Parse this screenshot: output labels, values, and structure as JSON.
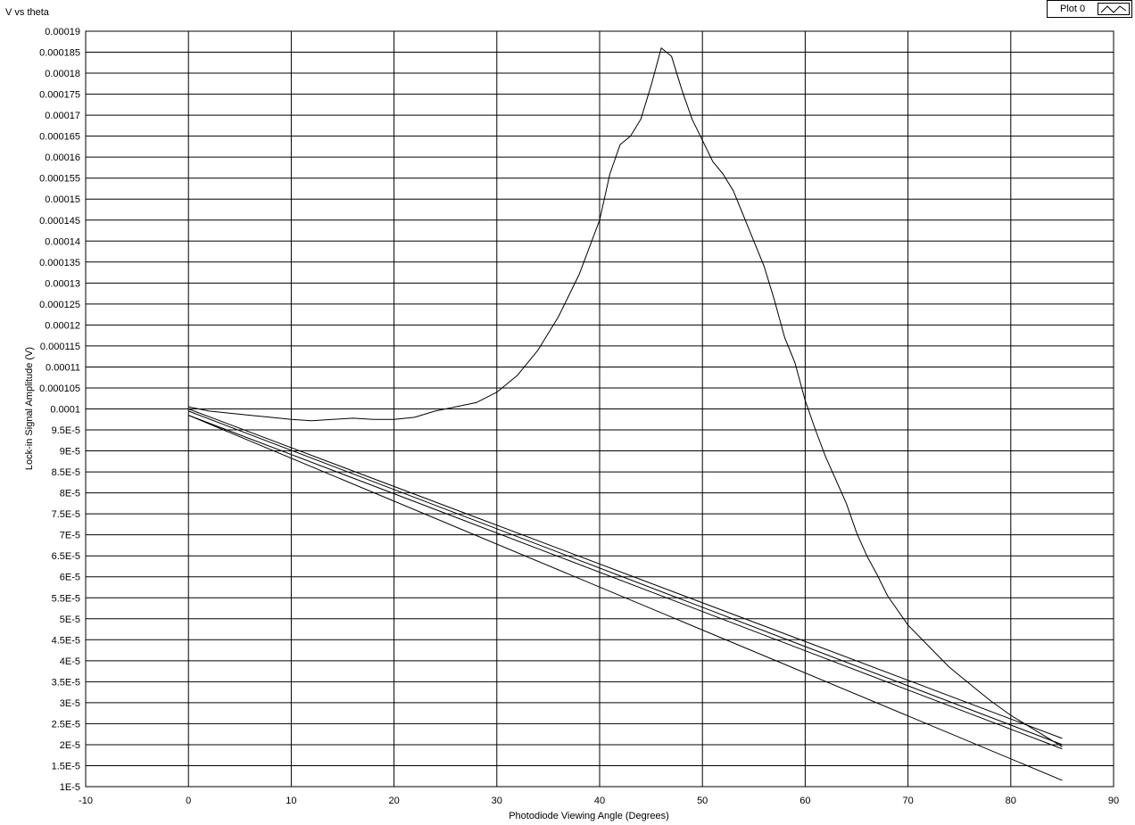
{
  "chart_data": {
    "type": "line",
    "title": "V vs theta",
    "xlabel": "Photodiode Viewing Angle (Degrees)",
    "ylabel": "Lock-in Signal Amplitude (V)",
    "xlim": [
      -10,
      90
    ],
    "ylim": [
      1e-05,
      0.00019
    ],
    "x_ticks": [
      "-10",
      "0",
      "10",
      "20",
      "30",
      "40",
      "50",
      "60",
      "70",
      "80",
      "90"
    ],
    "y_ticks": [
      "1E-5",
      "1.5E-5",
      "2E-5",
      "2.5E-5",
      "3E-5",
      "3.5E-5",
      "4E-5",
      "4.5E-5",
      "5E-5",
      "5.5E-5",
      "6E-5",
      "6.5E-5",
      "7E-5",
      "7.5E-5",
      "8E-5",
      "8.5E-5",
      "9E-5",
      "9.5E-5",
      "0.0001",
      "0.000105",
      "0.00011",
      "0.000115",
      "0.00012",
      "0.000125",
      "0.00013",
      "0.000135",
      "0.00014",
      "0.000145",
      "0.00015",
      "0.000155",
      "0.00016",
      "0.000165",
      "0.00017",
      "0.000175",
      "0.00018",
      "0.000185",
      "0.00019"
    ],
    "grid": true,
    "legend_position": "top-right",
    "series": [
      {
        "name": "Plot 0",
        "color": "#000000",
        "x": [
          0,
          2,
          4,
          6,
          8,
          10,
          12,
          14,
          16,
          18,
          20,
          22,
          24,
          26,
          28,
          30,
          32,
          34,
          36,
          38,
          40,
          41,
          42,
          43,
          44,
          45,
          46,
          47,
          48,
          49,
          50,
          51,
          52,
          53,
          54,
          55,
          56,
          57,
          58,
          59,
          60,
          61,
          62,
          63,
          64,
          65,
          66,
          67,
          68,
          70,
          72,
          74,
          76,
          78,
          80,
          82,
          84,
          85
        ],
        "y": [
          0.0001005,
          9.95e-05,
          9.9e-05,
          9.85e-05,
          9.8e-05,
          9.75e-05,
          9.72e-05,
          9.75e-05,
          9.78e-05,
          9.75e-05,
          9.75e-05,
          9.8e-05,
          9.95e-05,
          0.0001005,
          0.0001015,
          0.000104,
          0.000108,
          0.000114,
          0.000122,
          0.000132,
          0.000145,
          0.000156,
          0.000163,
          0.000165,
          0.000169,
          0.000177,
          0.000186,
          0.000184,
          0.000176,
          0.000169,
          0.000164,
          0.000159,
          0.000156,
          0.000152,
          0.000146,
          0.00014,
          0.000134,
          0.000126,
          0.000117,
          0.000111,
          0.000102,
          9.5e-05,
          8.85e-05,
          8.3e-05,
          7.75e-05,
          7.05e-05,
          6.5e-05,
          6.05e-05,
          5.55e-05,
          4.85e-05,
          4.35e-05,
          3.85e-05,
          3.45e-05,
          3.05e-05,
          2.7e-05,
          2.4e-05,
          2.1e-05,
          1.95e-05
        ]
      },
      {
        "name": "Plot 0",
        "color": "#000000",
        "x": [
          85,
          0
        ],
        "y": [
          2e-05,
          9.95e-05
        ]
      },
      {
        "name": "Plot 0",
        "color": "#000000",
        "x": [
          85,
          0
        ],
        "y": [
          2.15e-05,
          0.0001
        ]
      },
      {
        "name": "Plot 0",
        "color": "#000000",
        "x": [
          85,
          0
        ],
        "y": [
          1.9e-05,
          9.85e-05
        ]
      },
      {
        "name": "Plot 0",
        "color": "#000000",
        "x": [
          85,
          0
        ],
        "y": [
          1.15e-05,
          9.85e-05
        ]
      }
    ]
  },
  "legend": {
    "label": "Plot 0"
  }
}
